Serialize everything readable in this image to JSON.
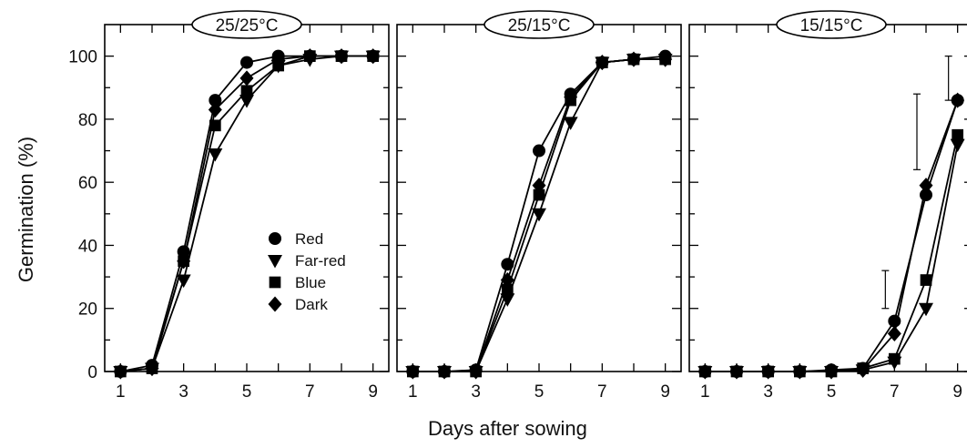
{
  "figure": {
    "ylabel": "Germination (%)",
    "xlabel": "Days after sowing",
    "legend": {
      "placement": "inside first panel, middle-right",
      "entries": [
        {
          "label": "Red",
          "marker": "circle"
        },
        {
          "label": "Far-red",
          "marker": "triangle-down"
        },
        {
          "label": "Blue",
          "marker": "square"
        },
        {
          "label": "Dark",
          "marker": "diamond"
        }
      ]
    }
  },
  "chart_data": [
    {
      "type": "line",
      "title": "25/25°C",
      "xlabel": "Days after sowing",
      "ylabel": "Germination (%)",
      "xlim": [
        0.5,
        9.5
      ],
      "ylim": [
        0,
        110
      ],
      "x_ticks": [
        "1",
        "3",
        "5",
        "7",
        "9"
      ],
      "y_ticks": [
        "0",
        "20",
        "40",
        "60",
        "80",
        "100"
      ],
      "x": [
        1,
        2,
        3,
        4,
        5,
        6,
        7,
        8,
        9
      ],
      "series": [
        {
          "name": "Red",
          "marker": "circle",
          "values": [
            0,
            2,
            38,
            86,
            98,
            100,
            100,
            100,
            100
          ]
        },
        {
          "name": "Far-red",
          "marker": "triangle-down",
          "values": [
            0,
            1,
            29,
            69,
            86,
            97,
            99,
            100,
            100
          ]
        },
        {
          "name": "Blue",
          "marker": "square",
          "values": [
            0,
            1,
            35,
            78,
            89,
            97,
            100,
            100,
            100
          ]
        },
        {
          "name": "Dark",
          "marker": "diamond",
          "values": [
            0,
            1,
            35,
            83,
            93,
            99,
            100,
            100,
            100
          ]
        }
      ]
    },
    {
      "type": "line",
      "title": "25/15°C",
      "xlabel": "Days after sowing",
      "ylabel": "Germination (%)",
      "xlim": [
        0.5,
        9.5
      ],
      "ylim": [
        0,
        110
      ],
      "x_ticks": [
        "1",
        "3",
        "5",
        "7",
        "9"
      ],
      "y_ticks": [
        "0",
        "20",
        "40",
        "60",
        "80",
        "100"
      ],
      "x": [
        1,
        2,
        3,
        4,
        5,
        6,
        7,
        8,
        9
      ],
      "series": [
        {
          "name": "Red",
          "marker": "circle",
          "values": [
            0,
            0,
            0.5,
            34,
            70,
            88,
            98,
            99,
            100
          ]
        },
        {
          "name": "Far-red",
          "marker": "triangle-down",
          "values": [
            0,
            0,
            0,
            23,
            50,
            79,
            98,
            99,
            99
          ]
        },
        {
          "name": "Blue",
          "marker": "square",
          "values": [
            0,
            0,
            0,
            26,
            56,
            86,
            98,
            99,
            99
          ]
        },
        {
          "name": "Dark",
          "marker": "diamond",
          "values": [
            0,
            0,
            0,
            29,
            59,
            87,
            98,
            99,
            99
          ]
        }
      ]
    },
    {
      "type": "line",
      "title": "15/15°C",
      "xlabel": "Days after sowing",
      "ylabel": "Germination (%)",
      "xlim": [
        0.5,
        9.5
      ],
      "ylim": [
        0,
        110
      ],
      "x_ticks": [
        "1",
        "3",
        "5",
        "7",
        "9"
      ],
      "y_ticks": [],
      "x": [
        1,
        2,
        3,
        4,
        5,
        6,
        7,
        8,
        9
      ],
      "series": [
        {
          "name": "Red",
          "marker": "circle",
          "values": [
            0,
            0,
            0,
            0,
            0.5,
            1,
            16,
            56,
            86
          ]
        },
        {
          "name": "Far-red",
          "marker": "triangle-down",
          "values": [
            0,
            0,
            0,
            0,
            0,
            0.5,
            3,
            20,
            72
          ]
        },
        {
          "name": "Blue",
          "marker": "square",
          "values": [
            0,
            0,
            0,
            0,
            0,
            1,
            4,
            29,
            75
          ]
        },
        {
          "name": "Dark",
          "marker": "diamond",
          "values": [
            0,
            0,
            0,
            0,
            0,
            0.5,
            12,
            59,
            86
          ]
        }
      ],
      "error_bars": [
        {
          "x": 7,
          "low": 20,
          "high": 32
        },
        {
          "x": 8,
          "low": 64,
          "high": 88
        },
        {
          "x": 9,
          "low": 86,
          "high": 100
        }
      ]
    }
  ]
}
